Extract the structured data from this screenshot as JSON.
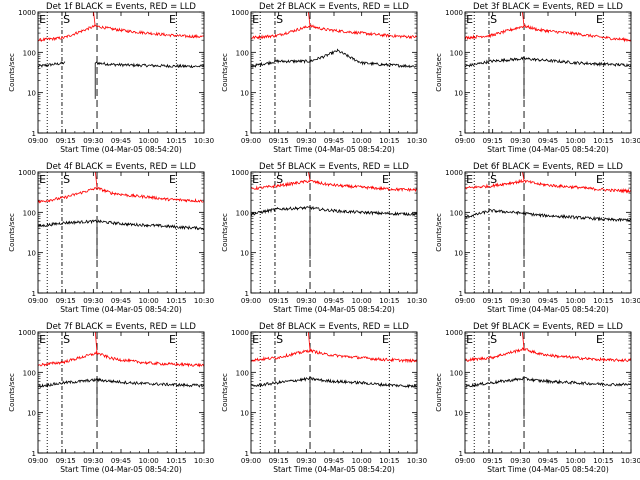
{
  "chart_data": [
    {
      "type": "line",
      "title": "Det 1f BLACK = Events, RED = LLD",
      "xlabel": "Start Time (04-Mar-05 08:54:20)",
      "ylabel": "Counts/sec",
      "xticks": [
        "09:00",
        "09:15",
        "09:30",
        "09:45",
        "10:00",
        "10:15",
        "10:30"
      ],
      "yscale": "log",
      "ylim": [
        1,
        1000
      ],
      "yticks": [
        "1",
        "10",
        "100",
        "1000"
      ],
      "markers": [
        "E",
        "S",
        "E"
      ],
      "series": [
        {
          "name": "BLACK = Events",
          "color": "#000000",
          "x": [
            "09:00",
            "09:15",
            "09:25",
            "09:31",
            "09:40",
            "09:50",
            "10:00",
            "10:10",
            "10:20",
            "10:30"
          ],
          "y": [
            45,
            55,
            null,
            55,
            50,
            48,
            47,
            46,
            45,
            45
          ]
        },
        {
          "name": "RED = LLD",
          "color": "#ff0000",
          "x": [
            "09:00",
            "09:14",
            "09:31",
            "09:40",
            "09:50",
            "10:00",
            "10:10",
            "10:20",
            "10:30"
          ],
          "y": [
            200,
            230,
            450,
            380,
            330,
            300,
            270,
            250,
            245
          ]
        }
      ]
    },
    {
      "type": "line",
      "title": "Det 2f BLACK = Events, RED = LLD",
      "xlabel": "Start Time (04-Mar-05 08:54:20)",
      "ylabel": "Counts/sec",
      "xticks": [
        "09:00",
        "09:15",
        "09:30",
        "09:45",
        "10:00",
        "10:15",
        "10:30"
      ],
      "yscale": "log",
      "ylim": [
        1,
        1000
      ],
      "yticks": [
        "1",
        "10",
        "100",
        "1000"
      ],
      "markers": [
        "E",
        "S",
        "E"
      ],
      "series": [
        {
          "name": "BLACK = Events",
          "color": "#000000",
          "x": [
            "09:00",
            "09:14",
            "09:32",
            "09:40",
            "09:47",
            "09:55",
            "10:00",
            "10:10",
            "10:20",
            "10:30"
          ],
          "y": [
            45,
            60,
            60,
            80,
            110,
            70,
            55,
            50,
            47,
            45
          ]
        },
        {
          "name": "RED = LLD",
          "color": "#ff0000",
          "x": [
            "09:00",
            "09:14",
            "09:32",
            "09:40",
            "09:50",
            "10:00",
            "10:10",
            "10:20",
            "10:30"
          ],
          "y": [
            230,
            260,
            450,
            370,
            330,
            300,
            270,
            250,
            240
          ]
        }
      ]
    },
    {
      "type": "line",
      "title": "Det 3f BLACK = Events, RED = LLD",
      "xlabel": "Start Time (04-Mar-05 08:54:20)",
      "ylabel": "Counts/sec",
      "xticks": [
        "09:00",
        "09:15",
        "09:30",
        "09:45",
        "10:00",
        "10:15",
        "10:30"
      ],
      "yscale": "log",
      "ylim": [
        1,
        1000
      ],
      "yticks": [
        "1",
        "10",
        "100",
        "1000"
      ],
      "markers": [
        "E",
        "S",
        "E"
      ],
      "series": [
        {
          "name": "BLACK = Events",
          "color": "#000000",
          "x": [
            "09:00",
            "09:14",
            "09:32",
            "09:40",
            "09:50",
            "10:00",
            "10:10",
            "10:20",
            "10:30"
          ],
          "y": [
            45,
            60,
            70,
            65,
            60,
            55,
            52,
            50,
            48
          ]
        },
        {
          "name": "RED = LLD",
          "color": "#ff0000",
          "x": [
            "09:00",
            "09:14",
            "09:32",
            "09:40",
            "09:50",
            "10:00",
            "10:10",
            "10:20",
            "10:30"
          ],
          "y": [
            230,
            260,
            450,
            360,
            320,
            290,
            250,
            220,
            200
          ]
        }
      ]
    },
    {
      "type": "line",
      "title": "Det 4f BLACK = Events, RED = LLD",
      "xlabel": "Start Time (04-Mar-05 08:54:20)",
      "ylabel": "Counts/sec",
      "xticks": [
        "09:00",
        "09:15",
        "09:30",
        "09:45",
        "10:00",
        "10:15",
        "10:30"
      ],
      "yscale": "log",
      "ylim": [
        1,
        1000
      ],
      "yticks": [
        "1",
        "10",
        "100",
        "1000"
      ],
      "markers": [
        "E",
        "S",
        "E"
      ],
      "series": [
        {
          "name": "BLACK = Events",
          "color": "#000000",
          "x": [
            "09:00",
            "09:14",
            "09:32",
            "09:40",
            "09:50",
            "10:00",
            "10:10",
            "10:20",
            "10:30"
          ],
          "y": [
            45,
            55,
            60,
            55,
            50,
            48,
            45,
            42,
            40
          ]
        },
        {
          "name": "RED = LLD",
          "color": "#ff0000",
          "x": [
            "09:00",
            "09:14",
            "09:32",
            "09:40",
            "09:50",
            "10:00",
            "10:10",
            "10:20",
            "10:30"
          ],
          "y": [
            180,
            230,
            400,
            300,
            260,
            240,
            210,
            200,
            190
          ]
        }
      ]
    },
    {
      "type": "line",
      "title": "Det 5f BLACK = Events, RED = LLD",
      "xlabel": "Start Time (04-Mar-05 08:54:20)",
      "ylabel": "Counts/sec",
      "xticks": [
        "09:00",
        "09:15",
        "09:30",
        "09:45",
        "10:00",
        "10:15",
        "10:30"
      ],
      "yscale": "log",
      "ylim": [
        1,
        1000
      ],
      "yticks": [
        "1",
        "10",
        "100",
        "1000"
      ],
      "markers": [
        "E",
        "S",
        "E"
      ],
      "series": [
        {
          "name": "BLACK = Events",
          "color": "#000000",
          "x": [
            "09:00",
            "09:14",
            "09:32",
            "09:40",
            "09:50",
            "10:00",
            "10:10",
            "10:20",
            "10:30"
          ],
          "y": [
            90,
            120,
            130,
            115,
            105,
            100,
            95,
            92,
            90
          ]
        },
        {
          "name": "RED = LLD",
          "color": "#ff0000",
          "x": [
            "09:00",
            "09:14",
            "09:32",
            "09:40",
            "09:50",
            "10:00",
            "10:10",
            "10:20",
            "10:30"
          ],
          "y": [
            380,
            450,
            600,
            500,
            450,
            420,
            390,
            370,
            360
          ]
        }
      ]
    },
    {
      "type": "line",
      "title": "Det 6f BLACK = Events, RED = LLD",
      "xlabel": "Start Time (04-Mar-05 08:54:20)",
      "ylabel": "Counts/sec",
      "xticks": [
        "09:00",
        "09:15",
        "09:30",
        "09:45",
        "10:00",
        "10:15",
        "10:30"
      ],
      "yscale": "log",
      "ylim": [
        1,
        1000
      ],
      "yticks": [
        "1",
        "10",
        "100",
        "1000"
      ],
      "markers": [
        "E",
        "S",
        "E"
      ],
      "series": [
        {
          "name": "BLACK = Events",
          "color": "#000000",
          "x": [
            "09:00",
            "09:14",
            "09:32",
            "09:40",
            "09:50",
            "10:00",
            "10:10",
            "10:20",
            "10:30"
          ],
          "y": [
            75,
            110,
            95,
            85,
            80,
            75,
            70,
            65,
            65
          ]
        },
        {
          "name": "RED = LLD",
          "color": "#ff0000",
          "x": [
            "09:00",
            "09:14",
            "09:32",
            "09:40",
            "09:50",
            "10:00",
            "10:10",
            "10:20",
            "10:30"
          ],
          "y": [
            400,
            450,
            600,
            500,
            450,
            420,
            380,
            350,
            340
          ]
        }
      ]
    },
    {
      "type": "line",
      "title": "Det 7f BLACK = Events, RED = LLD",
      "xlabel": "Start Time (04-Mar-05 08:54:20)",
      "ylabel": "Counts/sec",
      "xticks": [
        "09:00",
        "09:15",
        "09:30",
        "09:45",
        "10:00",
        "10:15",
        "10:30"
      ],
      "yscale": "log",
      "ylim": [
        1,
        1000
      ],
      "yticks": [
        "1",
        "10",
        "100",
        "1000"
      ],
      "markers": [
        "E",
        "S",
        "E"
      ],
      "series": [
        {
          "name": "BLACK = Events",
          "color": "#000000",
          "x": [
            "09:00",
            "09:14",
            "09:32",
            "09:40",
            "09:50",
            "10:00",
            "10:10",
            "10:20",
            "10:30"
          ],
          "y": [
            45,
            55,
            65,
            60,
            55,
            52,
            50,
            48,
            47
          ]
        },
        {
          "name": "RED = LLD",
          "color": "#ff0000",
          "x": [
            "09:00",
            "09:14",
            "09:32",
            "09:40",
            "09:50",
            "10:00",
            "10:10",
            "10:20",
            "10:30"
          ],
          "y": [
            150,
            180,
            300,
            220,
            190,
            170,
            160,
            155,
            150
          ]
        }
      ]
    },
    {
      "type": "line",
      "title": "Det 8f BLACK = Events, RED = LLD",
      "xlabel": "Start Time (04-Mar-05 08:54:20)",
      "ylabel": "Counts/sec",
      "xticks": [
        "09:00",
        "09:15",
        "09:30",
        "09:45",
        "10:00",
        "10:15",
        "10:30"
      ],
      "yscale": "log",
      "ylim": [
        1,
        1000
      ],
      "yticks": [
        "1",
        "10",
        "100",
        "1000"
      ],
      "markers": [
        "E",
        "S",
        "E"
      ],
      "series": [
        {
          "name": "BLACK = Events",
          "color": "#000000",
          "x": [
            "09:00",
            "09:14",
            "09:32",
            "09:40",
            "09:50",
            "10:00",
            "10:10",
            "10:20",
            "10:30"
          ],
          "y": [
            45,
            55,
            70,
            62,
            58,
            55,
            50,
            47,
            45
          ]
        },
        {
          "name": "RED = LLD",
          "color": "#ff0000",
          "x": [
            "09:00",
            "09:14",
            "09:32",
            "09:40",
            "09:50",
            "10:00",
            "10:10",
            "10:20",
            "10:30"
          ],
          "y": [
            200,
            230,
            350,
            280,
            250,
            230,
            210,
            200,
            190
          ]
        }
      ]
    },
    {
      "type": "line",
      "title": "Det 9f BLACK = Events, RED = LLD",
      "xlabel": "Start Time (04-Mar-05 08:54:20)",
      "ylabel": "Counts/sec",
      "xticks": [
        "09:00",
        "09:15",
        "09:30",
        "09:45",
        "10:00",
        "10:15",
        "10:30"
      ],
      "yscale": "log",
      "ylim": [
        1,
        1000
      ],
      "yticks": [
        "1",
        "10",
        "100",
        "1000"
      ],
      "markers": [
        "E",
        "S",
        "E"
      ],
      "series": [
        {
          "name": "BLACK = Events",
          "color": "#000000",
          "x": [
            "09:00",
            "09:14",
            "09:32",
            "09:40",
            "09:50",
            "10:00",
            "10:10",
            "10:20",
            "10:30"
          ],
          "y": [
            45,
            55,
            70,
            62,
            58,
            55,
            52,
            50,
            50
          ]
        },
        {
          "name": "RED = LLD",
          "color": "#ff0000",
          "x": [
            "09:00",
            "09:14",
            "09:32",
            "09:40",
            "09:50",
            "10:00",
            "10:10",
            "10:20",
            "10:30"
          ],
          "y": [
            200,
            230,
            380,
            290,
            250,
            230,
            210,
            200,
            200
          ]
        }
      ]
    }
  ]
}
